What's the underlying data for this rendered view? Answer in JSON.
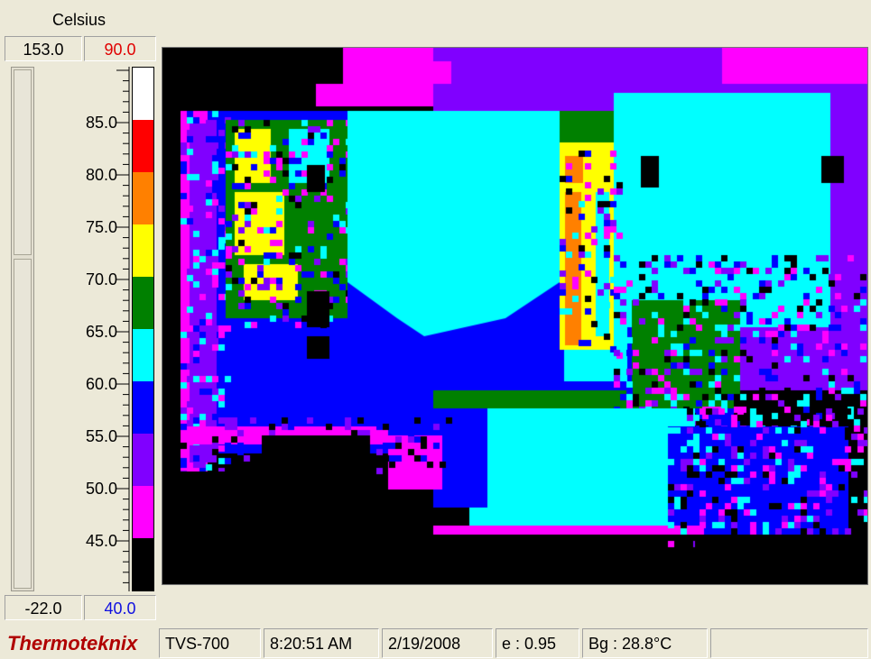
{
  "colorbar": {
    "unit_label": "Celsius",
    "range_max": "153.0",
    "level_max": "90.0",
    "range_min": "-22.0",
    "level_min": "40.0",
    "tick_labels": [
      "85.0",
      "80.0",
      "75.0",
      "70.0",
      "65.0",
      "60.0",
      "55.0",
      "50.0",
      "45.0"
    ],
    "palette": [
      {
        "name": "white",
        "color": "#ffffff"
      },
      {
        "name": "red",
        "color": "#ff0000"
      },
      {
        "name": "orange",
        "color": "#ff8000"
      },
      {
        "name": "yellow",
        "color": "#ffff00"
      },
      {
        "name": "green",
        "color": "#008000"
      },
      {
        "name": "cyan",
        "color": "#00ffff"
      },
      {
        "name": "blue",
        "color": "#0000ff"
      },
      {
        "name": "violet",
        "color": "#8000ff"
      },
      {
        "name": "magenta",
        "color": "#ff00ff"
      },
      {
        "name": "black",
        "color": "#000000"
      }
    ]
  },
  "status": {
    "brand": "Thermoteknix",
    "model": "TVS-700",
    "time": "8:20:51 AM",
    "date": "2/19/2008",
    "emissivity": "e : 0.95",
    "background_temp": "Bg : 28.8°C"
  }
}
